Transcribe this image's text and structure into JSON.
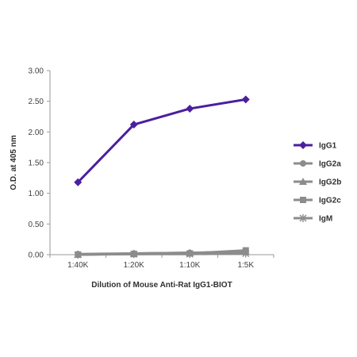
{
  "chart_data": {
    "type": "line",
    "xlabel": "Dilution of Mouse Anti-Rat IgG1-BIOT",
    "ylabel": "O.D. at 405 nm",
    "categories": [
      "1:40K",
      "1:20K",
      "1:10K",
      "1:5K"
    ],
    "ylim": [
      0,
      3
    ],
    "yticks": [
      "0.00",
      "0.50",
      "1.00",
      "1.50",
      "2.00",
      "2.50",
      "3.00"
    ],
    "ytick_values": [
      0,
      0.5,
      1,
      1.5,
      2,
      2.5,
      3
    ],
    "grid": false,
    "legend_position": "right",
    "series": [
      {
        "name": "IgG1",
        "values": [
          1.18,
          2.12,
          2.38,
          2.53
        ],
        "color": "#4b1f9e",
        "marker": "diamond"
      },
      {
        "name": "IgG2a",
        "values": [
          0.01,
          0.02,
          0.03,
          0.04
        ],
        "color": "#8c8c8c",
        "marker": "circle"
      },
      {
        "name": "IgG2b",
        "values": [
          0.0,
          0.02,
          0.03,
          0.05
        ],
        "color": "#8c8c8c",
        "marker": "triangle"
      },
      {
        "name": "IgG2c",
        "values": [
          0.0,
          0.01,
          0.02,
          0.07
        ],
        "color": "#8c8c8c",
        "marker": "square"
      },
      {
        "name": "IgM",
        "values": [
          0.0,
          0.01,
          0.01,
          0.02
        ],
        "color": "#8c8c8c",
        "marker": "star"
      }
    ]
  }
}
